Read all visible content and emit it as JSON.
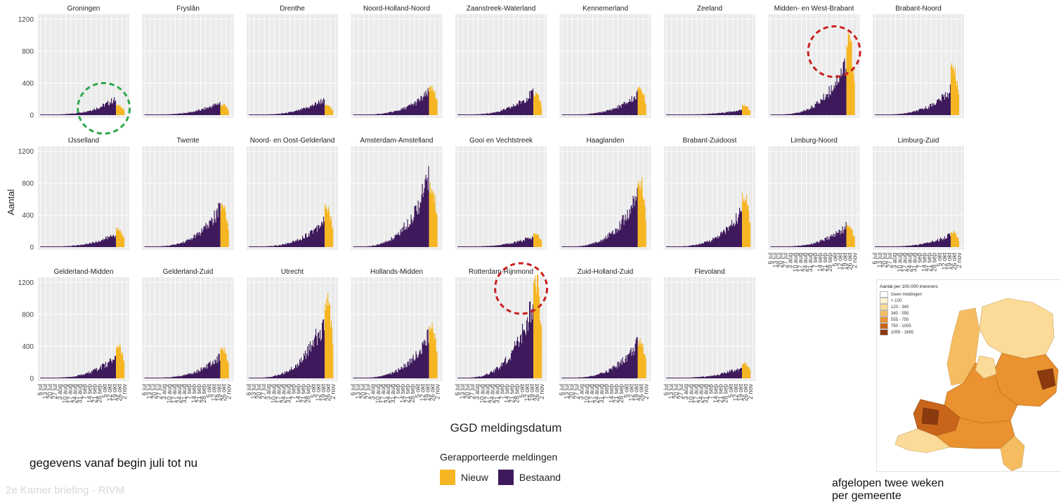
{
  "chart_data": {
    "type": "bar",
    "stacked": true,
    "xlabel": "GGD meldingsdatum",
    "ylabel": "Aantal",
    "ylim": [
      0,
      1300
    ],
    "y_ticks": [
      "0",
      "400",
      "800",
      "1200"
    ],
    "x_ticks": [
      "6 jul",
      "13 jul",
      "20 jul",
      "27 jul",
      "3 aug",
      "10 aug",
      "17 aug",
      "24 aug",
      "31 aug",
      "7 sep",
      "14 sep",
      "21 sep",
      "28 sep",
      "5 okt",
      "12 okt",
      "19 okt",
      "26 okt",
      "2 nov"
    ],
    "legend": {
      "title": "Gerapporteerde meldingen",
      "placement": "bottom",
      "items": [
        {
          "name": "Nieuw",
          "color": "#f6b623"
        },
        {
          "name": "Bestaand",
          "color": "#3e1a5c"
        }
      ]
    },
    "facets": [
      {
        "name": "Groningen",
        "peak": 190,
        "peak_week": 14,
        "yellow": 120
      },
      {
        "name": "Fryslân",
        "peak": 175,
        "peak_week": 15,
        "yellow": 130
      },
      {
        "name": "Drenthe",
        "peak": 185,
        "peak_week": 14,
        "yellow": 120
      },
      {
        "name": "Noord-Holland-Noord",
        "peak": 380,
        "peak_week": 16,
        "yellow": 340
      },
      {
        "name": "Zaanstreek-Waterland",
        "peak": 320,
        "peak_week": 15,
        "yellow": 260
      },
      {
        "name": "Kennemerland",
        "peak": 340,
        "peak_week": 16,
        "yellow": 330
      },
      {
        "name": "Zeeland",
        "peak": 110,
        "peak_week": 17,
        "yellow": 120
      },
      {
        "name": "Midden- en West-Brabant",
        "peak": 900,
        "peak_week": 16,
        "yellow": 950
      },
      {
        "name": "Brabant-Noord",
        "peak": 420,
        "peak_week": 16,
        "yellow": 600
      },
      {
        "name": "IJsselland",
        "peak": 220,
        "peak_week": 16,
        "yellow": 230
      },
      {
        "name": "Twente",
        "peak": 640,
        "peak_week": 16,
        "yellow": 500
      },
      {
        "name": "Noord- en Oost-Gelderland",
        "peak": 470,
        "peak_week": 16,
        "yellow": 500
      },
      {
        "name": "Amsterdam-Amstelland",
        "peak": 970,
        "peak_week": 15,
        "yellow": 760
      },
      {
        "name": "Gooi en Vechtstreek",
        "peak": 150,
        "peak_week": 15,
        "yellow": 160
      },
      {
        "name": "Haaglanden",
        "peak": 880,
        "peak_week": 16,
        "yellow": 820
      },
      {
        "name": "Brabant-Zuidoost",
        "peak": 600,
        "peak_week": 16,
        "yellow": 640
      },
      {
        "name": "Limburg-Noord",
        "peak": 350,
        "peak_week": 16,
        "yellow": 260
      },
      {
        "name": "Limburg-Zuid",
        "peak": 210,
        "peak_week": 16,
        "yellow": 190
      },
      {
        "name": "Gelderland-Midden",
        "peak": 360,
        "peak_week": 16,
        "yellow": 430
      },
      {
        "name": "Gelderland-Zuid",
        "peak": 370,
        "peak_week": 16,
        "yellow": 370
      },
      {
        "name": "Utrecht",
        "peak": 990,
        "peak_week": 16,
        "yellow": 1000
      },
      {
        "name": "Hollands-Midden",
        "peak": 700,
        "peak_week": 16,
        "yellow": 680
      },
      {
        "name": "Rotterdam-Rijnmond",
        "peak": 1230,
        "peak_week": 16,
        "yellow": 1240
      },
      {
        "name": "Zuid-Holland-Zuid",
        "peak": 590,
        "peak_week": 16,
        "yellow": 470
      },
      {
        "name": "Flevoland",
        "peak": 190,
        "peak_week": 16,
        "yellow": 200
      }
    ],
    "highlights": [
      {
        "facet": "Groningen",
        "color": "#2ea84a"
      },
      {
        "facet": "Midden- en West-Brabant",
        "color": "#c8201e"
      },
      {
        "facet": "Rotterdam-Rijnmond",
        "color": "#c8201e"
      }
    ]
  },
  "colors": {
    "nieuw": "#f6b623",
    "bestaand": "#3e1a5c",
    "panel_bg": "#ebebeb",
    "grid": "#ffffff"
  },
  "map": {
    "title": "Aantal per 100.000 inwoners",
    "legend": [
      {
        "label": "Geen meldingen",
        "color": "#ffffff"
      },
      {
        "label": "< 100",
        "color": "#fff3d2"
      },
      {
        "label": "120 - 340",
        "color": "#fbdb97"
      },
      {
        "label": "340 - 555",
        "color": "#f6bd60"
      },
      {
        "label": "555 - 750",
        "color": "#e9922f"
      },
      {
        "label": "750 - 1005",
        "color": "#c8651b"
      },
      {
        "label": "1005 - 1665",
        "color": "#8a3a0e"
      }
    ],
    "caption_line1": "afgelopen twee weken",
    "caption_line2": "per gemeente"
  },
  "footnote": "gegevens vanaf begin juli tot nu",
  "credit": "2e Kamer briefing - RIVM"
}
